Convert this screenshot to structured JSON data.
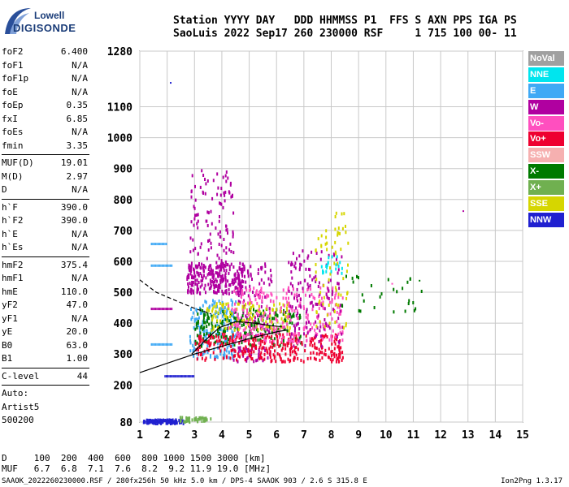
{
  "logo": {
    "line1": "Lowell",
    "line2": "DIGISONDE"
  },
  "header": {
    "line1": "Station YYYY DAY   DDD HHMMSS P1  FFS S AXN PPS IGA PS",
    "line2": "SaoLuis 2022 Sep17 260 230000 RSF     1 715 100 00- 11"
  },
  "params": [
    {
      "label": "foF2",
      "value": "6.400"
    },
    {
      "label": "foF1",
      "value": "N/A"
    },
    {
      "label": "foF1p",
      "value": "N/A"
    },
    {
      "label": "foE",
      "value": "N/A"
    },
    {
      "label": "foEp",
      "value": "0.35"
    },
    {
      "label": "fxI",
      "value": "6.85"
    },
    {
      "label": "foEs",
      "value": "N/A"
    },
    {
      "label": "fmin",
      "value": "3.35"
    },
    {
      "label": "MUF(D)",
      "value": "19.01"
    },
    {
      "label": "M(D)",
      "value": "2.97"
    },
    {
      "label": "D",
      "value": "N/A"
    },
    {
      "label": "h`F",
      "value": "390.0"
    },
    {
      "label": "h`F2",
      "value": "390.0"
    },
    {
      "label": "h`E",
      "value": "N/A"
    },
    {
      "label": "h`Es",
      "value": "N/A"
    },
    {
      "label": "hmF2",
      "value": "375.4"
    },
    {
      "label": "hmF1",
      "value": "N/A"
    },
    {
      "label": "hmE",
      "value": "110.0"
    },
    {
      "label": "yF2",
      "value": "47.0"
    },
    {
      "label": "yF1",
      "value": "N/A"
    },
    {
      "label": "yE",
      "value": "20.0"
    },
    {
      "label": "B0",
      "value": "63.0"
    },
    {
      "label": "B1",
      "value": "1.00"
    },
    {
      "label": "C-level",
      "value": "44"
    },
    {
      "label": "Auto:",
      "value": ""
    },
    {
      "label": "Artist5",
      "value": ""
    },
    {
      "label": "500200",
      "value": ""
    }
  ],
  "legend": [
    {
      "label": "NoVal",
      "color": "#a0a0a0"
    },
    {
      "label": "NNE",
      "color": "#00e5ee"
    },
    {
      "label": "E",
      "color": "#3fa9f5"
    },
    {
      "label": "W",
      "color": "#b000a0"
    },
    {
      "label": "Vo-",
      "color": "#ff4fbf"
    },
    {
      "label": "Vo+",
      "color": "#ee0030"
    },
    {
      "label": "SSW",
      "color": "#f6b0b0"
    },
    {
      "label": "X-",
      "color": "#007a00"
    },
    {
      "label": "X+",
      "color": "#70b050"
    },
    {
      "label": "SSE",
      "color": "#d6d600"
    },
    {
      "label": "NNW",
      "color": "#2020d0"
    }
  ],
  "chart_data": {
    "type": "scatter",
    "xlabel": "",
    "ylabel": "",
    "xlim": [
      1,
      15
    ],
    "ylim": [
      80,
      1280
    ],
    "x_ticks": [
      1,
      2,
      3,
      4,
      5,
      6,
      7,
      8,
      9,
      10,
      11,
      12,
      13,
      14,
      15
    ],
    "y_ticks": [
      80,
      200,
      300,
      400,
      500,
      600,
      700,
      800,
      900,
      1000,
      1100,
      1280
    ],
    "grid": true,
    "clusters": [
      {
        "name": "NNW",
        "color": "#2020d0",
        "f": [
          1.1,
          2.6
        ],
        "h": [
          80,
          92
        ],
        "n": 120
      },
      {
        "name": "X+",
        "color": "#70b050",
        "f": [
          2.4,
          3.6
        ],
        "h": [
          85,
          100
        ],
        "n": 40
      },
      {
        "name": "E",
        "color": "#3fa9f5",
        "f": [
          2.8,
          4.5
        ],
        "h": [
          290,
          480
        ],
        "n": 180
      },
      {
        "name": "W",
        "color": "#b000a0",
        "f": [
          2.7,
          4.8
        ],
        "h": [
          500,
          600
        ],
        "n": 260
      },
      {
        "name": "W",
        "color": "#b000a0",
        "f": [
          2.8,
          4.4
        ],
        "h": [
          580,
          900
        ],
        "n": 120
      },
      {
        "name": "W",
        "color": "#b000a0",
        "f": [
          4.4,
          5.8
        ],
        "h": [
          280,
          600
        ],
        "n": 150
      },
      {
        "name": "X-",
        "color": "#007a00",
        "f": [
          3.0,
          6.9
        ],
        "h": [
          330,
          450
        ],
        "n": 220
      },
      {
        "name": "SSE",
        "color": "#d6d600",
        "f": [
          3.4,
          6.5
        ],
        "h": [
          380,
          470
        ],
        "n": 120
      },
      {
        "name": "Vo+",
        "color": "#ee0030",
        "f": [
          3.0,
          8.4
        ],
        "h": [
          280,
          370
        ],
        "n": 320
      },
      {
        "name": "Vo-",
        "color": "#ff4fbf",
        "f": [
          4.2,
          8.4
        ],
        "h": [
          340,
          520
        ],
        "n": 280
      },
      {
        "name": "W",
        "color": "#b000a0",
        "f": [
          6.4,
          8.4
        ],
        "h": [
          330,
          640
        ],
        "n": 140
      },
      {
        "name": "SSE",
        "color": "#d6d600",
        "f": [
          7.4,
          8.6
        ],
        "h": [
          380,
          780
        ],
        "n": 70
      },
      {
        "name": "X-",
        "color": "#007a00",
        "f": [
          8.3,
          11.3
        ],
        "h": [
          440,
          560
        ],
        "n": 30
      },
      {
        "name": "NNE",
        "color": "#00e5ee",
        "f": [
          7.6,
          8.4
        ],
        "h": [
          560,
          620
        ],
        "n": 20
      }
    ],
    "isolated_points": [
      {
        "f": 2.1,
        "h": 1180,
        "color": "#2020d0"
      },
      {
        "f": 12.8,
        "h": 765,
        "color": "#b000a0"
      },
      {
        "f": 11.2,
        "h": 540,
        "color": "#007a00"
      },
      {
        "f": 10.2,
        "h": 530,
        "color": "#ff4fbf"
      }
    ],
    "curves": [
      {
        "style": "solid",
        "points": [
          [
            1.0,
            240
          ],
          [
            2.0,
            270
          ],
          [
            3.0,
            300
          ],
          [
            4.0,
            325
          ],
          [
            5.0,
            350
          ],
          [
            6.0,
            372
          ],
          [
            6.4,
            378
          ]
        ]
      },
      {
        "style": "dashed",
        "points": [
          [
            1.0,
            540
          ],
          [
            1.6,
            500
          ],
          [
            2.4,
            470
          ],
          [
            3.0,
            448
          ],
          [
            3.6,
            430
          ]
        ]
      },
      {
        "style": "solid",
        "points": [
          [
            2.9,
            300
          ],
          [
            3.4,
            345
          ],
          [
            3.9,
            385
          ],
          [
            4.5,
            405
          ],
          [
            5.2,
            400
          ],
          [
            5.8,
            392
          ],
          [
            6.2,
            388
          ]
        ]
      }
    ],
    "segments": [
      {
        "f": [
          1.4,
          2.0
        ],
        "h": 660,
        "color": "#3fa9f5"
      },
      {
        "f": [
          1.4,
          2.2
        ],
        "h": 590,
        "color": "#3fa9f5"
      },
      {
        "f": [
          1.4,
          2.2
        ],
        "h": 450,
        "color": "#b000a0"
      },
      {
        "f": [
          1.4,
          2.2
        ],
        "h": 335,
        "color": "#3fa9f5"
      },
      {
        "f": [
          1.9,
          3.0
        ],
        "h": 232,
        "color": "#2020d0"
      }
    ]
  },
  "footer": {
    "line1": "D     100  200  400  600  800 1000 1500 3000 [km]",
    "line2": "MUF   6.7  6.8  7.1  7.6  8.2  9.2 11.9 19.0 [MHz]"
  },
  "file_note": "SAAOK_2022260230000.RSF / 280fx256h 50 kHz 5.0 km / DPS-4 SAAOK 903 / 2.6 S 315.8 E",
  "version": "Ion2Png 1.3.17"
}
